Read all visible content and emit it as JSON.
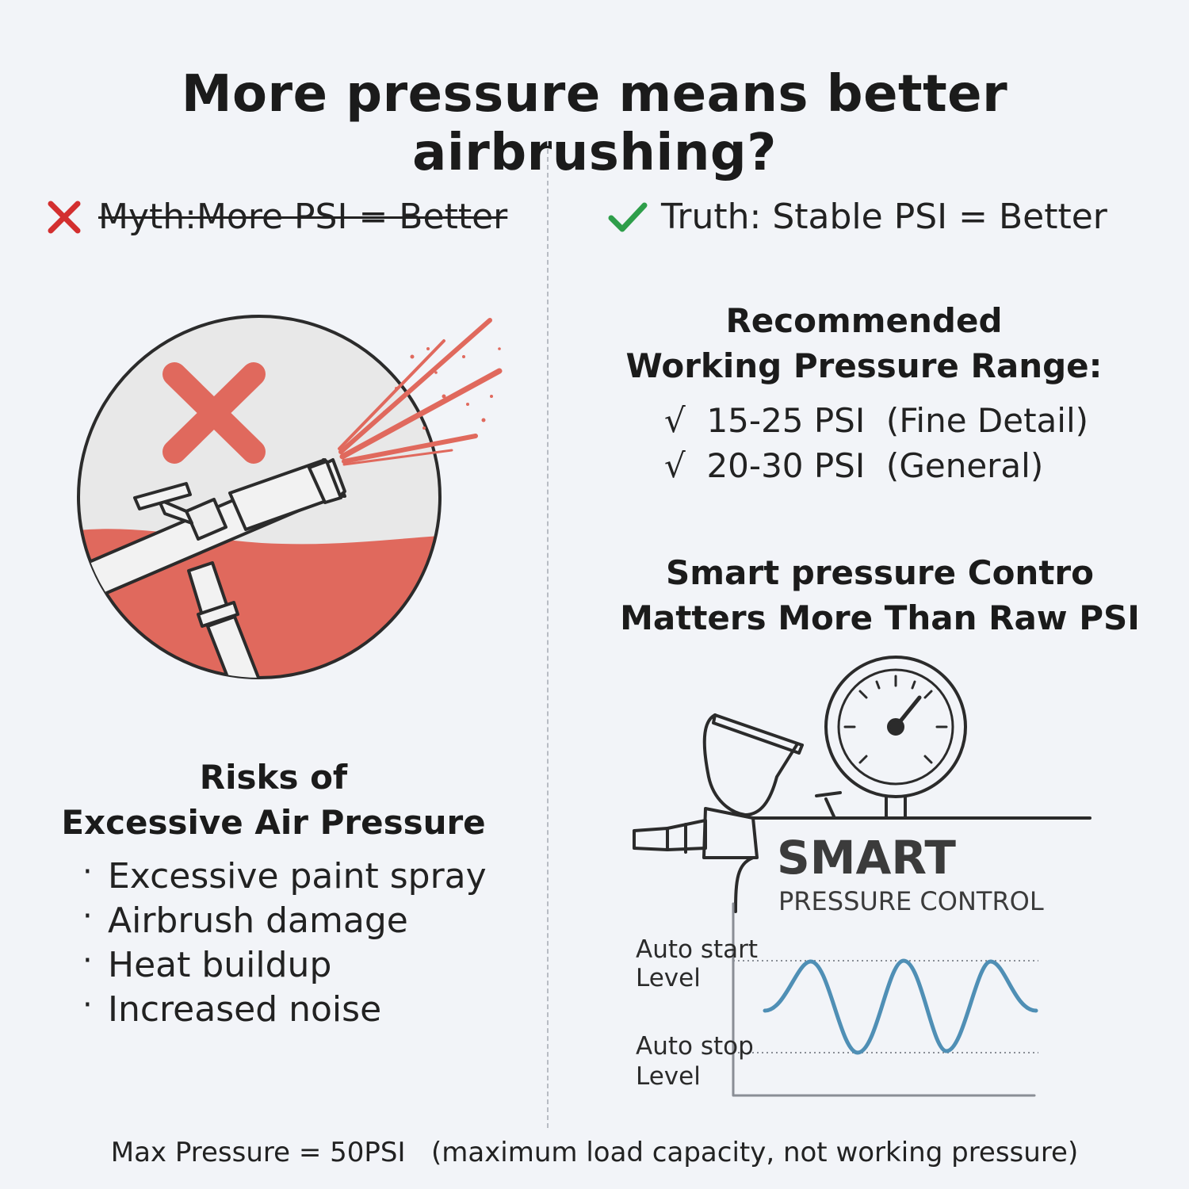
{
  "title": "More pressure means better airbrushing?",
  "myth": {
    "label": "Myth:More PSI = Better",
    "icon": "x-mark-icon",
    "icon_color": "#d32f2f"
  },
  "truth": {
    "label": "Truth: Stable PSI = Better",
    "icon": "checkmark-icon",
    "icon_color": "#2e9e4a"
  },
  "recommended": {
    "heading_line1": "Recommended",
    "heading_line2": "Working Pressure Range:",
    "ranges": [
      {
        "text": "√  15-25 PSI  (Fine Detail)"
      },
      {
        "text": "√  20-30 PSI  (General)"
      }
    ]
  },
  "smart": {
    "heading_line1": "Smart pressure Contro",
    "heading_line2": "Matters More Than Raw PSI",
    "logo_main": "SMART",
    "logo_sub": "PRESSURE CONTROL",
    "wave_color": "#4f8fb5",
    "auto_start_line1": "Auto start",
    "auto_start_line2": "Level",
    "auto_stop_line1": "Auto stop",
    "auto_stop_line2": "Level"
  },
  "risks": {
    "heading_line1": "Risks of",
    "heading_line2": "Excessive Air Pressure",
    "items": [
      "Excessive paint spray",
      "Airbrush damage",
      "Heat buildup",
      "Increased noise"
    ]
  },
  "illustration": {
    "accent_color": "#e0695d"
  },
  "footer": "Max Pressure = 50PSI   (maximum load capacity, not working pressure)"
}
